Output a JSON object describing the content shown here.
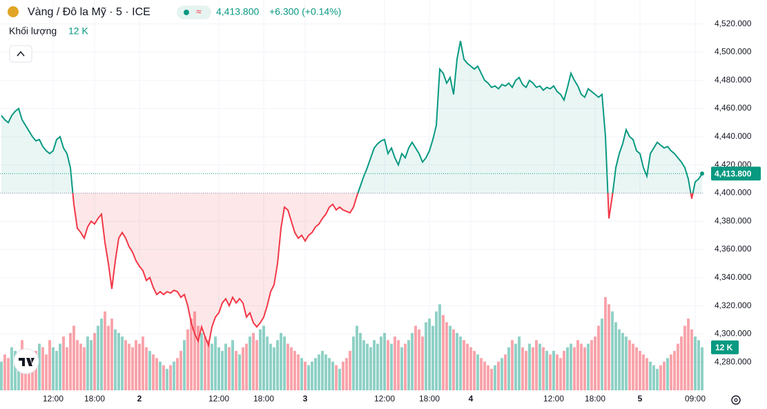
{
  "chart_data": {
    "type": "baseline",
    "title": "Vàng / Đô la Mỹ · 5 · ICE",
    "last_label": "4,413.800",
    "change_label": "+6.300 (+0.14%)",
    "volume_title": "Khối lượng",
    "volume_label": "12 K",
    "up_color": "#089981",
    "down_color": "#f23645",
    "baseline": 4400,
    "grid": true,
    "ylim": [
      4260,
      4537
    ],
    "yticks": [
      {
        "value": 4280,
        "label": "4,280.000"
      },
      {
        "value": 4300,
        "label": "4,300.000"
      },
      {
        "value": 4320,
        "label": "4,320.000"
      },
      {
        "value": 4340,
        "label": "4,340.000"
      },
      {
        "value": 4360,
        "label": "4,360.000"
      },
      {
        "value": 4380,
        "label": "4,380.000"
      },
      {
        "value": 4400,
        "label": "4,400.000"
      },
      {
        "value": 4420,
        "label": "4,420.000"
      },
      {
        "value": 4440,
        "label": "4,440.000"
      },
      {
        "value": 4460,
        "label": "4,460.000"
      },
      {
        "value": 4480,
        "label": "4,480.000"
      },
      {
        "value": 4500,
        "label": "4,500.000"
      },
      {
        "value": 4520,
        "label": "4,520.000"
      }
    ],
    "categories": [
      null,
      null,
      null,
      null,
      null,
      null,
      null,
      null,
      null,
      null,
      null,
      null,
      null,
      null,
      null,
      "12:00",
      null,
      null,
      null,
      null,
      null,
      null,
      null,
      null,
      null,
      null,
      null,
      "18:00",
      null,
      null,
      null,
      null,
      null,
      null,
      null,
      null,
      null,
      null,
      null,
      null,
      "2",
      null,
      null,
      null,
      null,
      null,
      null,
      null,
      null,
      null,
      null,
      null,
      null,
      null,
      null,
      null,
      null,
      null,
      null,
      null,
      null,
      null,
      null,
      "12:00",
      null,
      null,
      null,
      null,
      null,
      null,
      null,
      null,
      null,
      null,
      null,
      null,
      "18:00",
      null,
      null,
      null,
      null,
      null,
      null,
      null,
      null,
      null,
      null,
      null,
      "3",
      null,
      null,
      null,
      null,
      null,
      null,
      null,
      null,
      null,
      null,
      null,
      null,
      null,
      null,
      null,
      null,
      null,
      null,
      null,
      null,
      null,
      null,
      "12:00",
      null,
      null,
      null,
      null,
      null,
      null,
      null,
      null,
      null,
      null,
      null,
      null,
      "18:00",
      null,
      null,
      null,
      null,
      null,
      null,
      null,
      null,
      null,
      null,
      null,
      "4",
      null,
      null,
      null,
      null,
      null,
      null,
      null,
      null,
      null,
      null,
      null,
      null,
      null,
      null,
      null,
      null,
      null,
      null,
      null,
      null,
      null,
      null,
      null,
      "12:00",
      null,
      null,
      null,
      null,
      null,
      null,
      null,
      null,
      null,
      null,
      null,
      "18:00",
      null,
      null,
      null,
      null,
      null,
      null,
      null,
      null,
      null,
      null,
      null,
      null,
      "5",
      null,
      null,
      null,
      null,
      null,
      null,
      null,
      null,
      null,
      null,
      null,
      null,
      null,
      null,
      null,
      "09:00",
      null,
      null
    ],
    "values": [
      4455,
      4452,
      4450,
      4455,
      4458,
      4460,
      4452,
      4448,
      4444,
      4440,
      4437,
      4438,
      4433,
      4430,
      4428,
      4430,
      4438,
      4440,
      4432,
      4428,
      4418,
      4392,
      4375,
      4372,
      4368,
      4376,
      4380,
      4378,
      4382,
      4385,
      4365,
      4350,
      4332,
      4352,
      4368,
      4372,
      4368,
      4362,
      4358,
      4352,
      4348,
      4345,
      4338,
      4340,
      4333,
      4328,
      4330,
      4328,
      4330,
      4329,
      4331,
      4330,
      4326,
      4328,
      4320,
      4308,
      4300,
      4295,
      4305,
      4298,
      4292,
      4305,
      4312,
      4315,
      4322,
      4325,
      4320,
      4326,
      4322,
      4325,
      4322,
      4312,
      4315,
      4308,
      4305,
      4308,
      4312,
      4320,
      4330,
      4335,
      4350,
      4375,
      4390,
      4388,
      4380,
      4372,
      4368,
      4370,
      4366,
      4370,
      4372,
      4376,
      4378,
      4382,
      4385,
      4390,
      4392,
      4388,
      4390,
      4388,
      4387,
      4386,
      4390,
      4398,
      4405,
      4412,
      4418,
      4425,
      4432,
      4435,
      4437,
      4438,
      4428,
      4432,
      4425,
      4420,
      4428,
      4425,
      4432,
      4436,
      4432,
      4428,
      4422,
      4425,
      4430,
      4438,
      4448,
      4488,
      4485,
      4478,
      4482,
      4470,
      4495,
      4508,
      4495,
      4492,
      4490,
      4488,
      4490,
      4485,
      4480,
      4478,
      4475,
      4476,
      4474,
      4477,
      4476,
      4478,
      4475,
      4480,
      4482,
      4477,
      4475,
      4480,
      4478,
      4475,
      4476,
      4473,
      4475,
      4474,
      4476,
      4472,
      4470,
      4466,
      4475,
      4485,
      4480,
      4476,
      4470,
      4468,
      4474,
      4472,
      4470,
      4468,
      4470,
      4440,
      4382,
      4398,
      4418,
      4428,
      4435,
      4445,
      4440,
      4438,
      4430,
      4428,
      4418,
      4412,
      4428,
      4432,
      4436,
      4434,
      4432,
      4433,
      4430,
      4428,
      4425,
      4422,
      4418,
      4410,
      4396,
      4408,
      4410,
      4413.8
    ],
    "volume": [
      8,
      10,
      9,
      12,
      11,
      9,
      14,
      10,
      9,
      8,
      11,
      13,
      12,
      10,
      14,
      12,
      11,
      13,
      15,
      12,
      16,
      18,
      14,
      13,
      12,
      15,
      14,
      16,
      18,
      20,
      22,
      18,
      20,
      17,
      16,
      15,
      14,
      13,
      12,
      14,
      13,
      15,
      12,
      11,
      10,
      9,
      8,
      7,
      6,
      7,
      8,
      9,
      11,
      14,
      17,
      20,
      22,
      18,
      16,
      15,
      14,
      13,
      15,
      12,
      11,
      13,
      12,
      14,
      11,
      10,
      12,
      13,
      15,
      16,
      14,
      17,
      18,
      15,
      13,
      12,
      14,
      16,
      15,
      13,
      12,
      11,
      10,
      9,
      8,
      7,
      8,
      9,
      10,
      11,
      10,
      9,
      8,
      7,
      6,
      8,
      9,
      11,
      15,
      18,
      16,
      14,
      13,
      12,
      14,
      13,
      15,
      16,
      14,
      13,
      15,
      14,
      12,
      13,
      14,
      16,
      18,
      17,
      15,
      19,
      20,
      18,
      22,
      24,
      21,
      19,
      18,
      17,
      16,
      15,
      14,
      13,
      12,
      11,
      10,
      9,
      8,
      7,
      6,
      7,
      8,
      9,
      10,
      12,
      14,
      13,
      15,
      12,
      11,
      13,
      12,
      14,
      13,
      12,
      11,
      10,
      11,
      10,
      9,
      11,
      12,
      13,
      12,
      14,
      13,
      12,
      13,
      14,
      15,
      18,
      20,
      26,
      24,
      22,
      19,
      17,
      16,
      15,
      14,
      13,
      12,
      11,
      10,
      9,
      8,
      7,
      6,
      7,
      8,
      9,
      10,
      11,
      13,
      15,
      18,
      20,
      17,
      15,
      14,
      12
    ]
  }
}
